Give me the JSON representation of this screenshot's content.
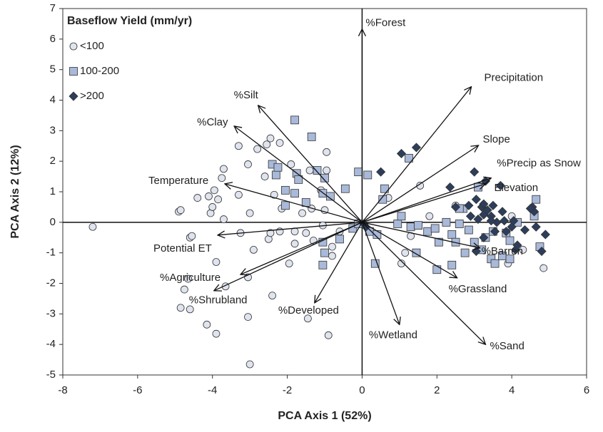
{
  "chart_data": {
    "type": "biplot",
    "x_label": "PCA Axis 1 (52%)",
    "y_label": "PCA Axis 2 (12%)",
    "legend_title": "Baseflow Yield (mm/yr)",
    "legend": "upper left",
    "xlim": [
      -8,
      6
    ],
    "xticks": [
      -8,
      -6,
      -4,
      -2,
      0,
      2,
      4,
      6
    ],
    "ylim": [
      -5,
      7
    ],
    "yticks": [
      -5,
      -4,
      -3,
      -2,
      -1,
      0,
      1,
      2,
      3,
      4,
      5,
      6,
      7
    ],
    "series": [
      {
        "name": "<100",
        "marker": "circle",
        "color": "#dfe4ee",
        "x": [
          -7.2,
          -4.9,
          -4.85,
          -4.6,
          -4.55,
          -4.4,
          -4.1,
          -4.05,
          -4.0,
          -3.95,
          -3.85,
          -3.75,
          -3.7,
          -3.9,
          -3.65,
          -3.3,
          -3.3,
          -3.05,
          -3.0,
          -2.9,
          -2.8,
          -2.55,
          -2.45,
          -2.6,
          -2.5,
          -2.45,
          -2.35,
          -2.2,
          -2.2,
          -2.15,
          -1.95,
          -1.9,
          -1.8,
          -1.8,
          -1.6,
          -1.5,
          -1.4,
          -1.35,
          -1.3,
          -1.1,
          -1.0,
          -1.05,
          -0.95,
          -0.95,
          -0.8,
          -0.8,
          -0.9,
          -1.45,
          -2.4,
          -3.05,
          -3.0,
          -3.9,
          -4.15,
          -4.6,
          -4.85,
          -4.75,
          -4.65,
          -3.05,
          -3.25,
          -3.7,
          1.05,
          1.15,
          1.55,
          1.3,
          1.8,
          2.5,
          4.0,
          4.3,
          3.9,
          4.85,
          0.7,
          -0.6
        ],
        "y": [
          -0.15,
          0.35,
          0.4,
          -0.5,
          -0.45,
          0.8,
          0.85,
          0.3,
          0.5,
          1.05,
          0.75,
          1.45,
          1.75,
          -1.3,
          -2.1,
          0.9,
          2.5,
          1.9,
          0.3,
          -0.9,
          2.4,
          2.55,
          2.75,
          1.5,
          -0.55,
          -0.35,
          0.9,
          -0.3,
          2.6,
          0.45,
          -1.35,
          1.9,
          -0.7,
          -0.3,
          0.3,
          -0.35,
          1.7,
          0.45,
          -0.6,
          1.05,
          0.4,
          -0.1,
          2.3,
          1.7,
          -0.8,
          -1.1,
          -3.7,
          -3.15,
          -2.4,
          -3.1,
          -4.65,
          -3.65,
          -3.35,
          -2.85,
          -2.8,
          -2.2,
          -1.85,
          -1.8,
          -0.35,
          0.1,
          -1.35,
          -1.0,
          1.2,
          -0.45,
          0.2,
          0.55,
          0.2,
          -0.9,
          -1.35,
          -1.5,
          0.8,
          -0.3
        ]
      },
      {
        "name": "100-200",
        "marker": "square",
        "color": "#a9b9d9",
        "x": [
          -2.4,
          -2.3,
          -1.8,
          -1.35,
          -2.05,
          -2.05,
          -1.8,
          -1.75,
          -1.7,
          -2.25,
          -1.5,
          -1.2,
          -1.0,
          -1.05,
          -0.85,
          -0.45,
          -0.1,
          0.15,
          0.6,
          0.55,
          -1.0,
          -1.05,
          -1.05,
          -0.6,
          -0.25,
          -0.1,
          0.2,
          0.4,
          0.95,
          1.05,
          1.3,
          1.5,
          1.75,
          1.95,
          2.6,
          2.7,
          2.75,
          2.4,
          2.0,
          1.45,
          0.35,
          2.25,
          2.4,
          2.5,
          2.85,
          3.1,
          3.3,
          3.45,
          3.55,
          3.75,
          3.85,
          3.95,
          4.15,
          4.6,
          4.65,
          4.75,
          2.6,
          1.25,
          3.2,
          3.0,
          2.05,
          3.5,
          3.95
        ],
        "y": [
          1.9,
          1.55,
          3.35,
          2.8,
          0.55,
          1.05,
          0.95,
          1.6,
          1.4,
          1.8,
          0.65,
          1.7,
          1.45,
          0.95,
          0.85,
          1.1,
          1.65,
          1.55,
          1.1,
          0.75,
          -1.0,
          -0.65,
          -1.4,
          -0.55,
          -0.2,
          -0.05,
          -0.3,
          -0.4,
          -0.05,
          0.2,
          -0.15,
          -0.1,
          -0.3,
          -0.2,
          -0.05,
          0.45,
          -1.0,
          -1.4,
          -1.55,
          -1.0,
          -1.35,
          0.0,
          -0.4,
          -0.65,
          -0.25,
          1.15,
          -0.5,
          -1.2,
          -1.35,
          -1.1,
          -0.35,
          -0.6,
          0.0,
          0.2,
          0.75,
          -0.8,
          0.45,
          2.1,
          -0.9,
          -0.65,
          -0.65,
          -0.3,
          -1.2
        ]
      },
      {
        "name": ">200",
        "marker": "diamond",
        "color": "#2d3e5c",
        "x": [
          0.05,
          0.1,
          0.5,
          1.05,
          1.45,
          2.35,
          2.5,
          2.85,
          3.0,
          3.05,
          3.1,
          3.2,
          3.25,
          3.25,
          3.35,
          3.45,
          3.5,
          3.6,
          3.55,
          3.7,
          3.75,
          3.8,
          3.85,
          4.0,
          4.1,
          4.15,
          4.35,
          4.55,
          4.6,
          4.65,
          4.8,
          4.9,
          3.05,
          2.9,
          3.45,
          3.25,
          4.05,
          4.5,
          3.3
        ],
        "y": [
          -0.05,
          -0.15,
          1.65,
          2.25,
          2.45,
          1.15,
          0.5,
          0.55,
          1.65,
          0.75,
          0.1,
          0.5,
          0.25,
          0.6,
          0.4,
          0.2,
          0.55,
          0.0,
          -0.3,
          1.2,
          0.35,
          0.05,
          -0.3,
          -0.15,
          -0.9,
          -0.75,
          -0.25,
          0.5,
          0.35,
          -0.15,
          -0.95,
          -0.4,
          -0.95,
          0.2,
          0.05,
          -0.5,
          0.05,
          0.45,
          1.35
        ]
      }
    ],
    "vectors": [
      {
        "name": "%Forest",
        "x": 0,
        "y": 6.33
      },
      {
        "name": "Precipitation",
        "x": 2.92,
        "y": 4.44
      },
      {
        "name": "Slope",
        "x": 3.11,
        "y": 2.52
      },
      {
        "name": "%Precip as Snow",
        "x": 3.45,
        "y": 1.45
      },
      {
        "name": "Elevation",
        "x": 3.3,
        "y": 1.26
      },
      {
        "name": "%Barren",
        "x": 3.15,
        "y": -0.84
      },
      {
        "name": "%Grassland",
        "x": 2.54,
        "y": -1.82
      },
      {
        "name": "%Sand",
        "x": 3.3,
        "y": -4.0
      },
      {
        "name": "%Wetland",
        "x": 1.0,
        "y": -3.35
      },
      {
        "name": "%Developed",
        "x": -1.27,
        "y": -2.64
      },
      {
        "name": "%Shrubland",
        "x": -3.96,
        "y": -2.24
      },
      {
        "name": "%Agriculture",
        "x": -3.25,
        "y": -1.71
      },
      {
        "name": "Potential ET",
        "x": -3.86,
        "y": -0.42
      },
      {
        "name": "Temperature",
        "x": -3.67,
        "y": 1.26
      },
      {
        "name": "%Clay",
        "x": -3.42,
        "y": 3.15
      },
      {
        "name": "%Silt",
        "x": -2.78,
        "y": 3.83
      }
    ]
  }
}
